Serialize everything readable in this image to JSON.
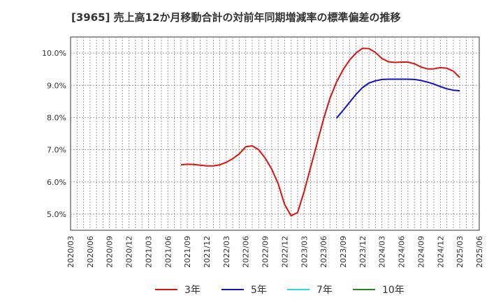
{
  "chart_data": {
    "type": "line",
    "title": "[3965]  売上高12か月移動合計の対前年同期増減率の標準偏差の推移",
    "xlabel": "",
    "ylabel": "",
    "x_range": [
      "2020/03",
      "2025/06"
    ],
    "ylim": [
      4.5,
      10.5
    ],
    "y_ticks": [
      5.0,
      6.0,
      7.0,
      8.0,
      9.0,
      10.0
    ],
    "y_tick_labels": [
      "5.0%",
      "6.0%",
      "7.0%",
      "8.0%",
      "9.0%",
      "10.0%"
    ],
    "x_tick_labels": [
      "2020/03",
      "2020/06",
      "2020/09",
      "2020/12",
      "2021/03",
      "2021/06",
      "2021/09",
      "2021/12",
      "2022/03",
      "2022/06",
      "2022/09",
      "2022/12",
      "2023/03",
      "2023/06",
      "2023/09",
      "2023/12",
      "2024/03",
      "2024/06",
      "2024/09",
      "2024/12",
      "2025/03",
      "2025/06"
    ],
    "grid": true,
    "legend_position": "bottom",
    "series": [
      {
        "name": "3年",
        "color": "#dd1111",
        "x": [
          "2021/08",
          "2021/09",
          "2021/10",
          "2021/11",
          "2021/12",
          "2022/01",
          "2022/02",
          "2022/03",
          "2022/04",
          "2022/05",
          "2022/06",
          "2022/07",
          "2022/08",
          "2022/09",
          "2022/10",
          "2022/11",
          "2022/12",
          "2023/01",
          "2023/02",
          "2023/03",
          "2023/04",
          "2023/05",
          "2023/06",
          "2023/07",
          "2023/08",
          "2023/09",
          "2023/10",
          "2023/11",
          "2023/12",
          "2024/01",
          "2024/02",
          "2024/03",
          "2024/04",
          "2024/05",
          "2024/06",
          "2024/07",
          "2024/08",
          "2024/09",
          "2024/10",
          "2024/11",
          "2024/12",
          "2025/01",
          "2025/02",
          "2025/03"
        ],
        "values": [
          6.53,
          6.55,
          6.54,
          6.52,
          6.5,
          6.5,
          6.53,
          6.61,
          6.72,
          6.87,
          7.09,
          7.12,
          7.0,
          6.74,
          6.4,
          5.95,
          5.3,
          4.95,
          5.05,
          5.7,
          6.45,
          7.2,
          7.95,
          8.6,
          9.1,
          9.48,
          9.78,
          10.0,
          10.15,
          10.14,
          10.02,
          9.83,
          9.73,
          9.71,
          9.72,
          9.72,
          9.67,
          9.57,
          9.51,
          9.51,
          9.55,
          9.53,
          9.44,
          9.24
        ]
      },
      {
        "name": "5年",
        "color": "#1111cc",
        "x": [
          "2023/08",
          "2023/09",
          "2023/10",
          "2023/11",
          "2023/12",
          "2024/01",
          "2024/02",
          "2024/03",
          "2024/04",
          "2024/05",
          "2024/06",
          "2024/07",
          "2024/08",
          "2024/09",
          "2024/10",
          "2024/11",
          "2024/12",
          "2025/01",
          "2025/02",
          "2025/03"
        ],
        "values": [
          7.98,
          8.22,
          8.47,
          8.72,
          8.93,
          9.07,
          9.14,
          9.18,
          9.19,
          9.19,
          9.19,
          9.19,
          9.18,
          9.15,
          9.1,
          9.04,
          8.96,
          8.89,
          8.85,
          8.83
        ]
      },
      {
        "name": "7年",
        "color": "#22dddd",
        "x": [],
        "values": []
      },
      {
        "name": "10年",
        "color": "#228822",
        "x": [],
        "values": []
      }
    ]
  }
}
